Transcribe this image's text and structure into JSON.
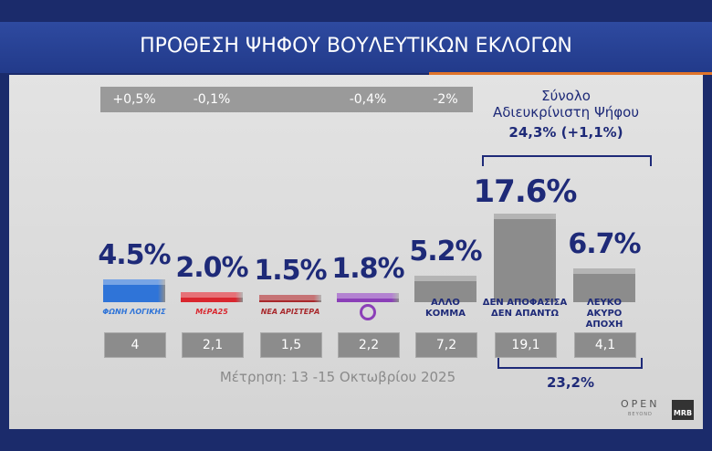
{
  "chart_data": {
    "type": "bar",
    "title": "ΠΡΟΘΕΣΗ ΨΗΦΟΥ ΒΟΥΛΕΥΤΙΚΩΝ ΕΚΛΟΓΩΝ",
    "categories": [
      "ΦΩΝΗ ΛΟΓΙΚΗΣ",
      "ΜέΡΑ25",
      "ΝΕΑ ΑΡΙΣΤΕΡΑ",
      null,
      "ΑΛΛΟ\nΚΟΜΜΑ",
      "ΔΕΝ ΑΠΟΦΑΣΙΣΑ\nΔΕΝ ΑΠΑΝΤΩ",
      "ΛΕΥΚΟ\nΑΚΥΡΟ\nΑΠΟΧΗ"
    ],
    "values": [
      4.5,
      2.0,
      1.5,
      1.8,
      5.2,
      17.6,
      6.7
    ],
    "value_labels": [
      "4.5%",
      "2.0%",
      "1.5%",
      "1.8%",
      "5.2%",
      "17.6%",
      "6.7%"
    ],
    "colors": [
      "#2f74d8",
      "#d9262e",
      "#a8282c",
      "#8b3fb8",
      "#8c8c8c",
      "#8c8c8c",
      "#8c8c8c"
    ],
    "changes": [
      "+0,5%",
      "-0,1%",
      null,
      "-0,4%",
      "-2%",
      null,
      null
    ],
    "previous": [
      "4",
      "2,1",
      "1,5",
      "2,2",
      "7,2",
      "19,1",
      "4,1"
    ],
    "undecided_title": "Σύνολο\nΑδιευκρίνιστη  Ψήφου",
    "undecided_total": "24,3% (+1,1%)",
    "previous_undecided_total": "23,2%",
    "fieldwork": "Μέτρηση: 13 -15 Οκτωβρίου 2025",
    "logos": [
      "OPEN",
      "BEYOND",
      "MRB"
    ]
  }
}
